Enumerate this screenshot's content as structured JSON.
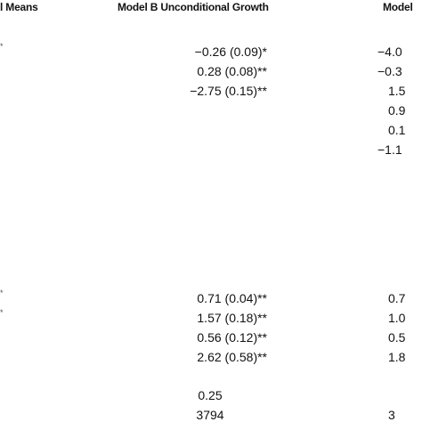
{
  "table": {
    "headers": [
      "l Means",
      "Model B Unconditional Growth",
      "Model"
    ],
    "groups": [
      [
        {
          "a": "*",
          "b": "−0.26 (0.09)*",
          "c": "−4.0"
        },
        {
          "b": "0.28 (0.08)**",
          "c": "−0.3"
        },
        {
          "b": "−2.75 (0.15)**",
          "c": "1.5"
        },
        {
          "c": "0.9"
        },
        {
          "c": "0.1"
        },
        {
          "c": "−1.1"
        }
      ],
      [
        {
          "a": "*",
          "b": "0.71 (0.04)**",
          "c": "0.7"
        },
        {
          "a": "*",
          "b": "1.57 (0.18)**",
          "c": "1.0"
        },
        {
          "b": "0.56 (0.12)**",
          "c": "0.5"
        },
        {
          "b": "2.62 (0.58)**",
          "c": "1.8"
        }
      ],
      [
        {
          "b": "0.25"
        },
        {
          "b": "3794",
          "c": "3"
        }
      ]
    ]
  }
}
